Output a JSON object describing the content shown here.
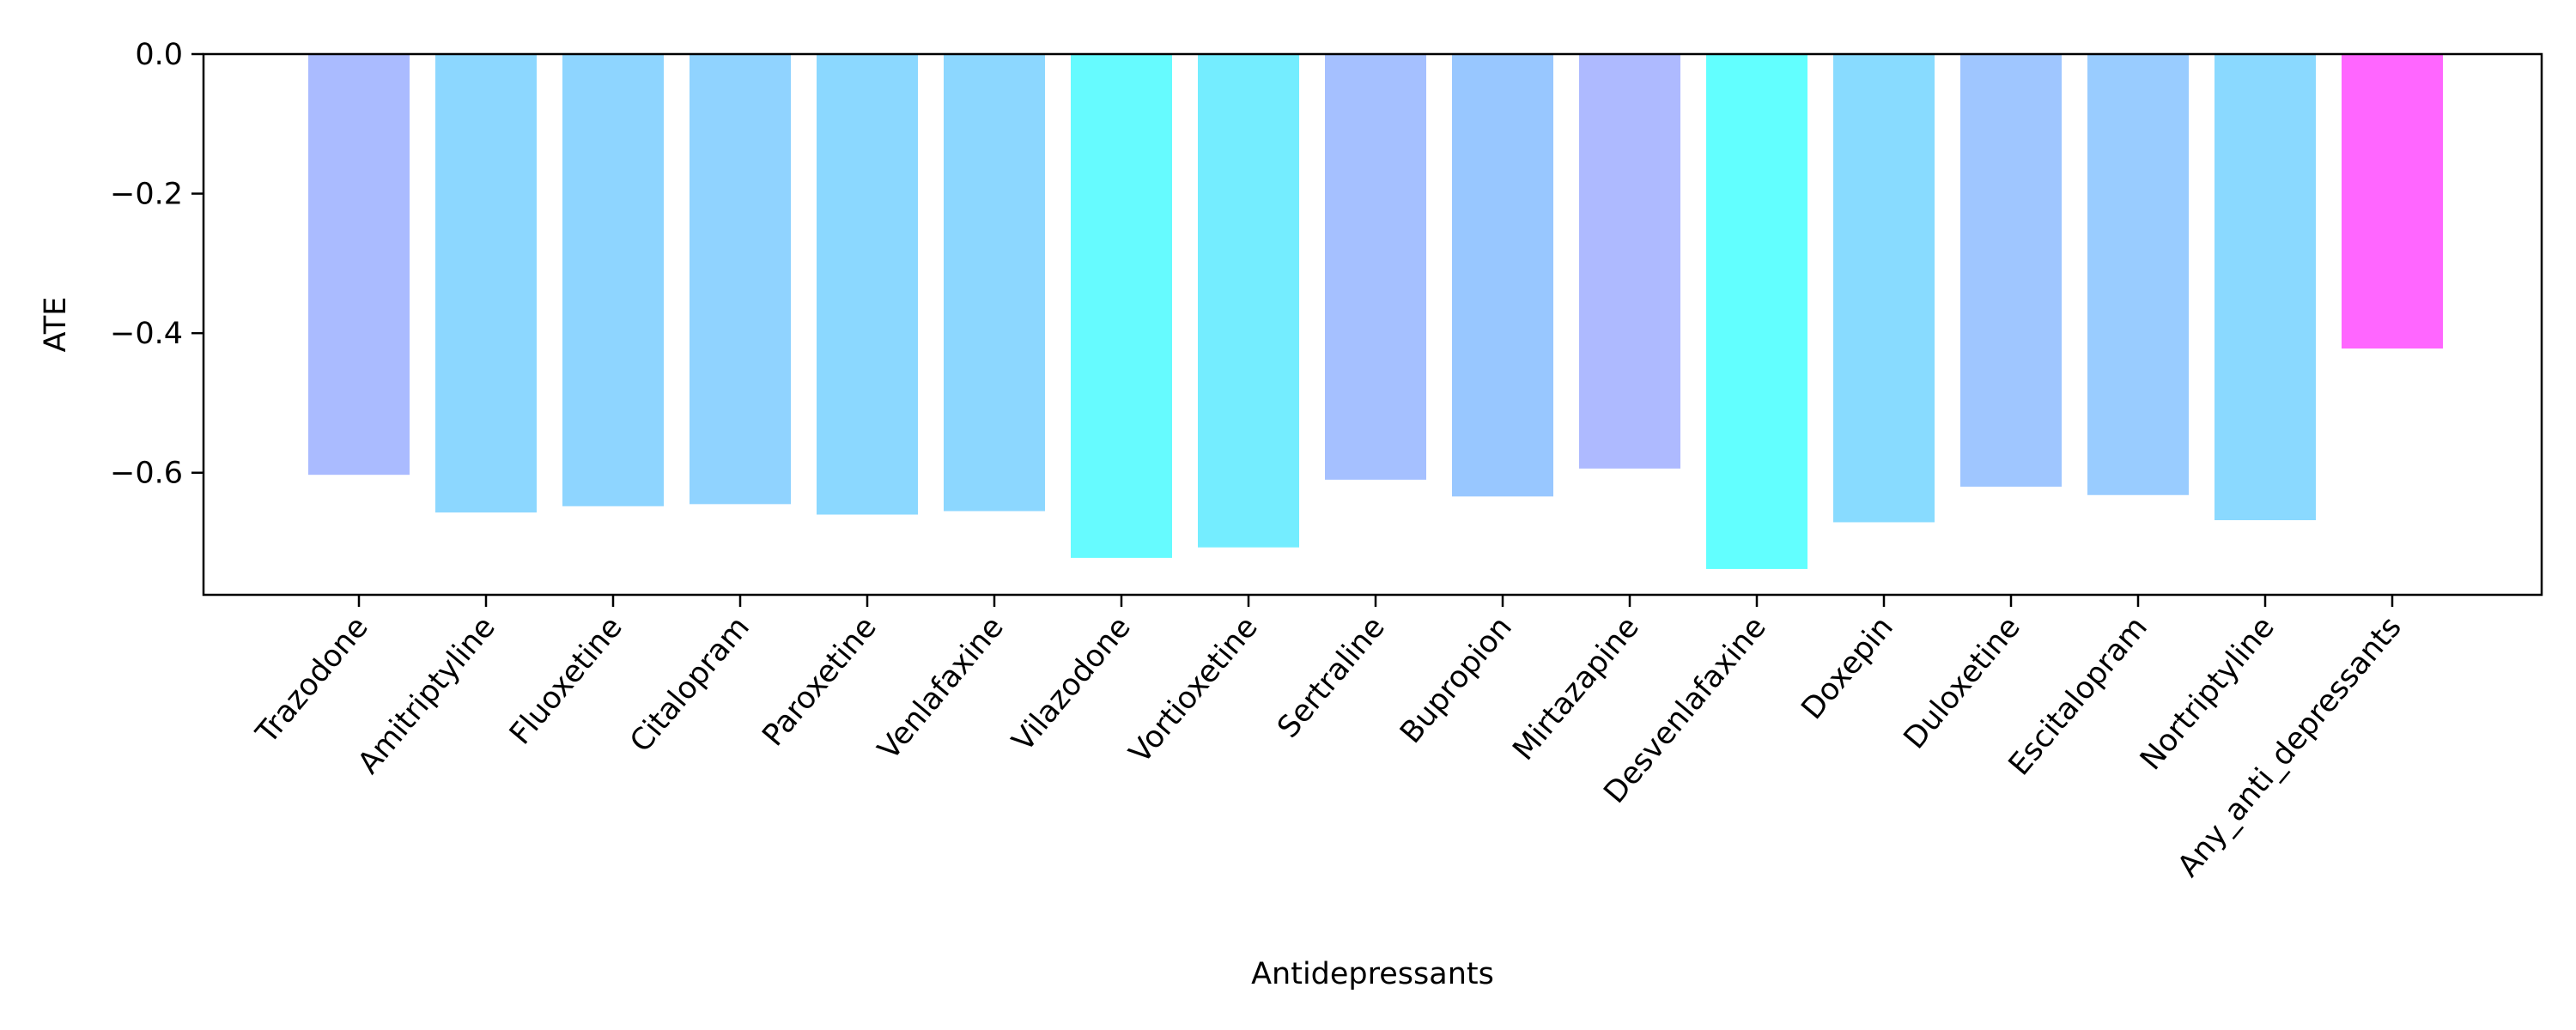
{
  "chart_data": {
    "type": "bar",
    "title": "",
    "xlabel": "Antidepressants",
    "ylabel": "ATE",
    "ylim": [
      -0.775,
      0.0
    ],
    "yticks": [
      0.0,
      -0.2,
      -0.4,
      -0.6
    ],
    "ytick_labels": [
      "0.0",
      "−0.2",
      "−0.4",
      "−0.6"
    ],
    "grid": false,
    "legend": "none",
    "categories": [
      "Trazodone",
      "Amitriptyline",
      "Fluoxetine",
      "Citalopram",
      "Paroxetine",
      "Venlafaxine",
      "Vilazodone",
      "Vortioxetine",
      "Sertraline",
      "Bupropion",
      "Mirtazapine",
      "Desvenlafaxine",
      "Doxepin",
      "Duloxetine",
      "Escitalopram",
      "Nortriptyline",
      "Any_anti_depressants"
    ],
    "values": [
      -0.603,
      -0.657,
      -0.648,
      -0.645,
      -0.66,
      -0.655,
      -0.722,
      -0.707,
      -0.61,
      -0.634,
      -0.594,
      -0.738,
      -0.671,
      -0.62,
      -0.632,
      -0.668,
      -0.422
    ],
    "colors": [
      "#aabbff",
      "#8cd7ff",
      "#8ed5ff",
      "#90d3ff",
      "#8bd8ff",
      "#8cd7ff",
      "#66fbff",
      "#74edff",
      "#a5c0ff",
      "#98c7ff",
      "#aebaff",
      "#62ffff",
      "#88dbff",
      "#9fc6ff",
      "#99ccff",
      "#8ad9ff",
      "#ff66ff"
    ]
  }
}
